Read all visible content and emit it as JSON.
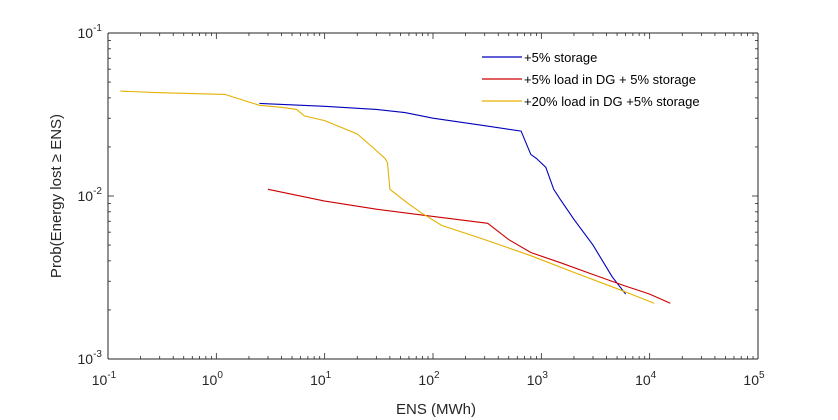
{
  "chart_data": {
    "type": "line",
    "xscale": "log",
    "yscale": "log",
    "xlim": [
      0.1,
      100000
    ],
    "ylim": [
      0.001,
      0.1
    ],
    "xlabel": "ENS (MWh)",
    "ylabel_parts": [
      "Prob(Energy lost ",
      "≥",
      " ENS)"
    ],
    "grid": false,
    "legend_position": "top-right",
    "x_ticks": [
      {
        "base": "10",
        "exp": "-1",
        "value": 0.1
      },
      {
        "base": "10",
        "exp": "0",
        "value": 1
      },
      {
        "base": "10",
        "exp": "1",
        "value": 10
      },
      {
        "base": "10",
        "exp": "2",
        "value": 100
      },
      {
        "base": "10",
        "exp": "3",
        "value": 1000
      },
      {
        "base": "10",
        "exp": "4",
        "value": 10000
      },
      {
        "base": "10",
        "exp": "5",
        "value": 100000
      }
    ],
    "y_ticks": [
      {
        "base": "10",
        "exp": "-3",
        "value": 0.001
      },
      {
        "base": "10",
        "exp": "-2",
        "value": 0.01
      },
      {
        "base": "10",
        "exp": "-1",
        "value": 0.1
      }
    ],
    "series": [
      {
        "name": "+5% storage",
        "color": "#0000bb",
        "points": [
          [
            2.5,
            0.037
          ],
          [
            10,
            0.0355
          ],
          [
            30,
            0.034
          ],
          [
            55,
            0.0325
          ],
          [
            100,
            0.03
          ],
          [
            300,
            0.027
          ],
          [
            650,
            0.025
          ],
          [
            800,
            0.018
          ],
          [
            900,
            0.017
          ],
          [
            1100,
            0.015
          ],
          [
            1300,
            0.011
          ],
          [
            1500,
            0.0095
          ],
          [
            2000,
            0.0072
          ],
          [
            3000,
            0.005
          ],
          [
            4500,
            0.0032
          ],
          [
            6000,
            0.0025
          ]
        ]
      },
      {
        "name": "+5% load in DG + 5% storage",
        "color": "#cc0000",
        "points": [
          [
            3,
            0.011
          ],
          [
            10,
            0.0093
          ],
          [
            30,
            0.0083
          ],
          [
            100,
            0.0075
          ],
          [
            320,
            0.0068
          ],
          [
            500,
            0.0054
          ],
          [
            800,
            0.0045
          ],
          [
            1500,
            0.0039
          ],
          [
            3000,
            0.0033
          ],
          [
            6000,
            0.0028
          ],
          [
            10000,
            0.0025
          ],
          [
            15500,
            0.0022
          ]
        ]
      },
      {
        "name": "+20% load in DG +5% storage",
        "color": "#e6b000",
        "points": [
          [
            0.13,
            0.044
          ],
          [
            0.3,
            0.043
          ],
          [
            1.2,
            0.042
          ],
          [
            2.5,
            0.036
          ],
          [
            4,
            0.035
          ],
          [
            5.5,
            0.034
          ],
          [
            6.5,
            0.031
          ],
          [
            10,
            0.029
          ],
          [
            20,
            0.024
          ],
          [
            30,
            0.019
          ],
          [
            36,
            0.017
          ],
          [
            38,
            0.016
          ],
          [
            40,
            0.011
          ],
          [
            60,
            0.0089
          ],
          [
            80,
            0.0078
          ],
          [
            120,
            0.0066
          ],
          [
            300,
            0.0054
          ],
          [
            800,
            0.0043
          ],
          [
            2000,
            0.0034
          ],
          [
            5000,
            0.0027
          ],
          [
            11000,
            0.0022
          ]
        ]
      }
    ]
  }
}
